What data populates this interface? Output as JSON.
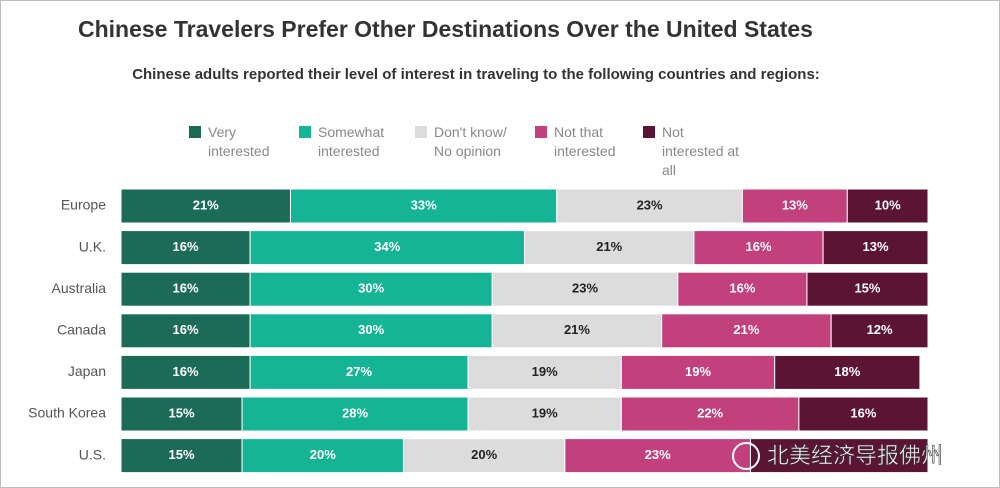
{
  "chart_data": {
    "type": "stacked-bar",
    "orientation": "horizontal",
    "title": "Chinese Travelers Prefer Other Destinations Over the United States",
    "subtitle": "Chinese adults reported their level of interest in traveling to the following countries and regions:",
    "categories": [
      "Europe",
      "U.K.",
      "Australia",
      "Canada",
      "Japan",
      "South Korea",
      "U.S."
    ],
    "xlim": [
      0,
      100
    ],
    "series": [
      {
        "name": "Very interested",
        "color": "#1b6b57",
        "values": [
          21,
          16,
          16,
          16,
          16,
          15,
          15
        ],
        "value_labels": [
          "21%",
          "16%",
          "16%",
          "16%",
          "16%",
          "15%",
          "15%"
        ]
      },
      {
        "name": "Somewhat interested",
        "color": "#14b495",
        "values": [
          33,
          34,
          30,
          30,
          27,
          28,
          20
        ],
        "value_labels": [
          "33%",
          "34%",
          "30%",
          "30%",
          "27%",
          "28%",
          "20%"
        ]
      },
      {
        "name": "Don't know/ No opinion",
        "color": "#dcdcdc",
        "values": [
          23,
          21,
          23,
          21,
          19,
          19,
          20
        ],
        "value_labels": [
          "23%",
          "21%",
          "23%",
          "21%",
          "19%",
          "19%",
          "20%"
        ]
      },
      {
        "name": "Not that interested",
        "color": "#c2407b",
        "values": [
          13,
          16,
          16,
          21,
          19,
          22,
          23
        ],
        "value_labels": [
          "13%",
          "16%",
          "16%",
          "21%",
          "19%",
          "22%",
          "23%"
        ]
      },
      {
        "name": "Not interested at all",
        "color": "#5c1435",
        "values": [
          10,
          13,
          15,
          12,
          18,
          16,
          22
        ],
        "value_labels": [
          "10%",
          "13%",
          "15%",
          "12%",
          "18%",
          "16%",
          null
        ]
      }
    ],
    "watermark": "北美经济导报佛州"
  }
}
